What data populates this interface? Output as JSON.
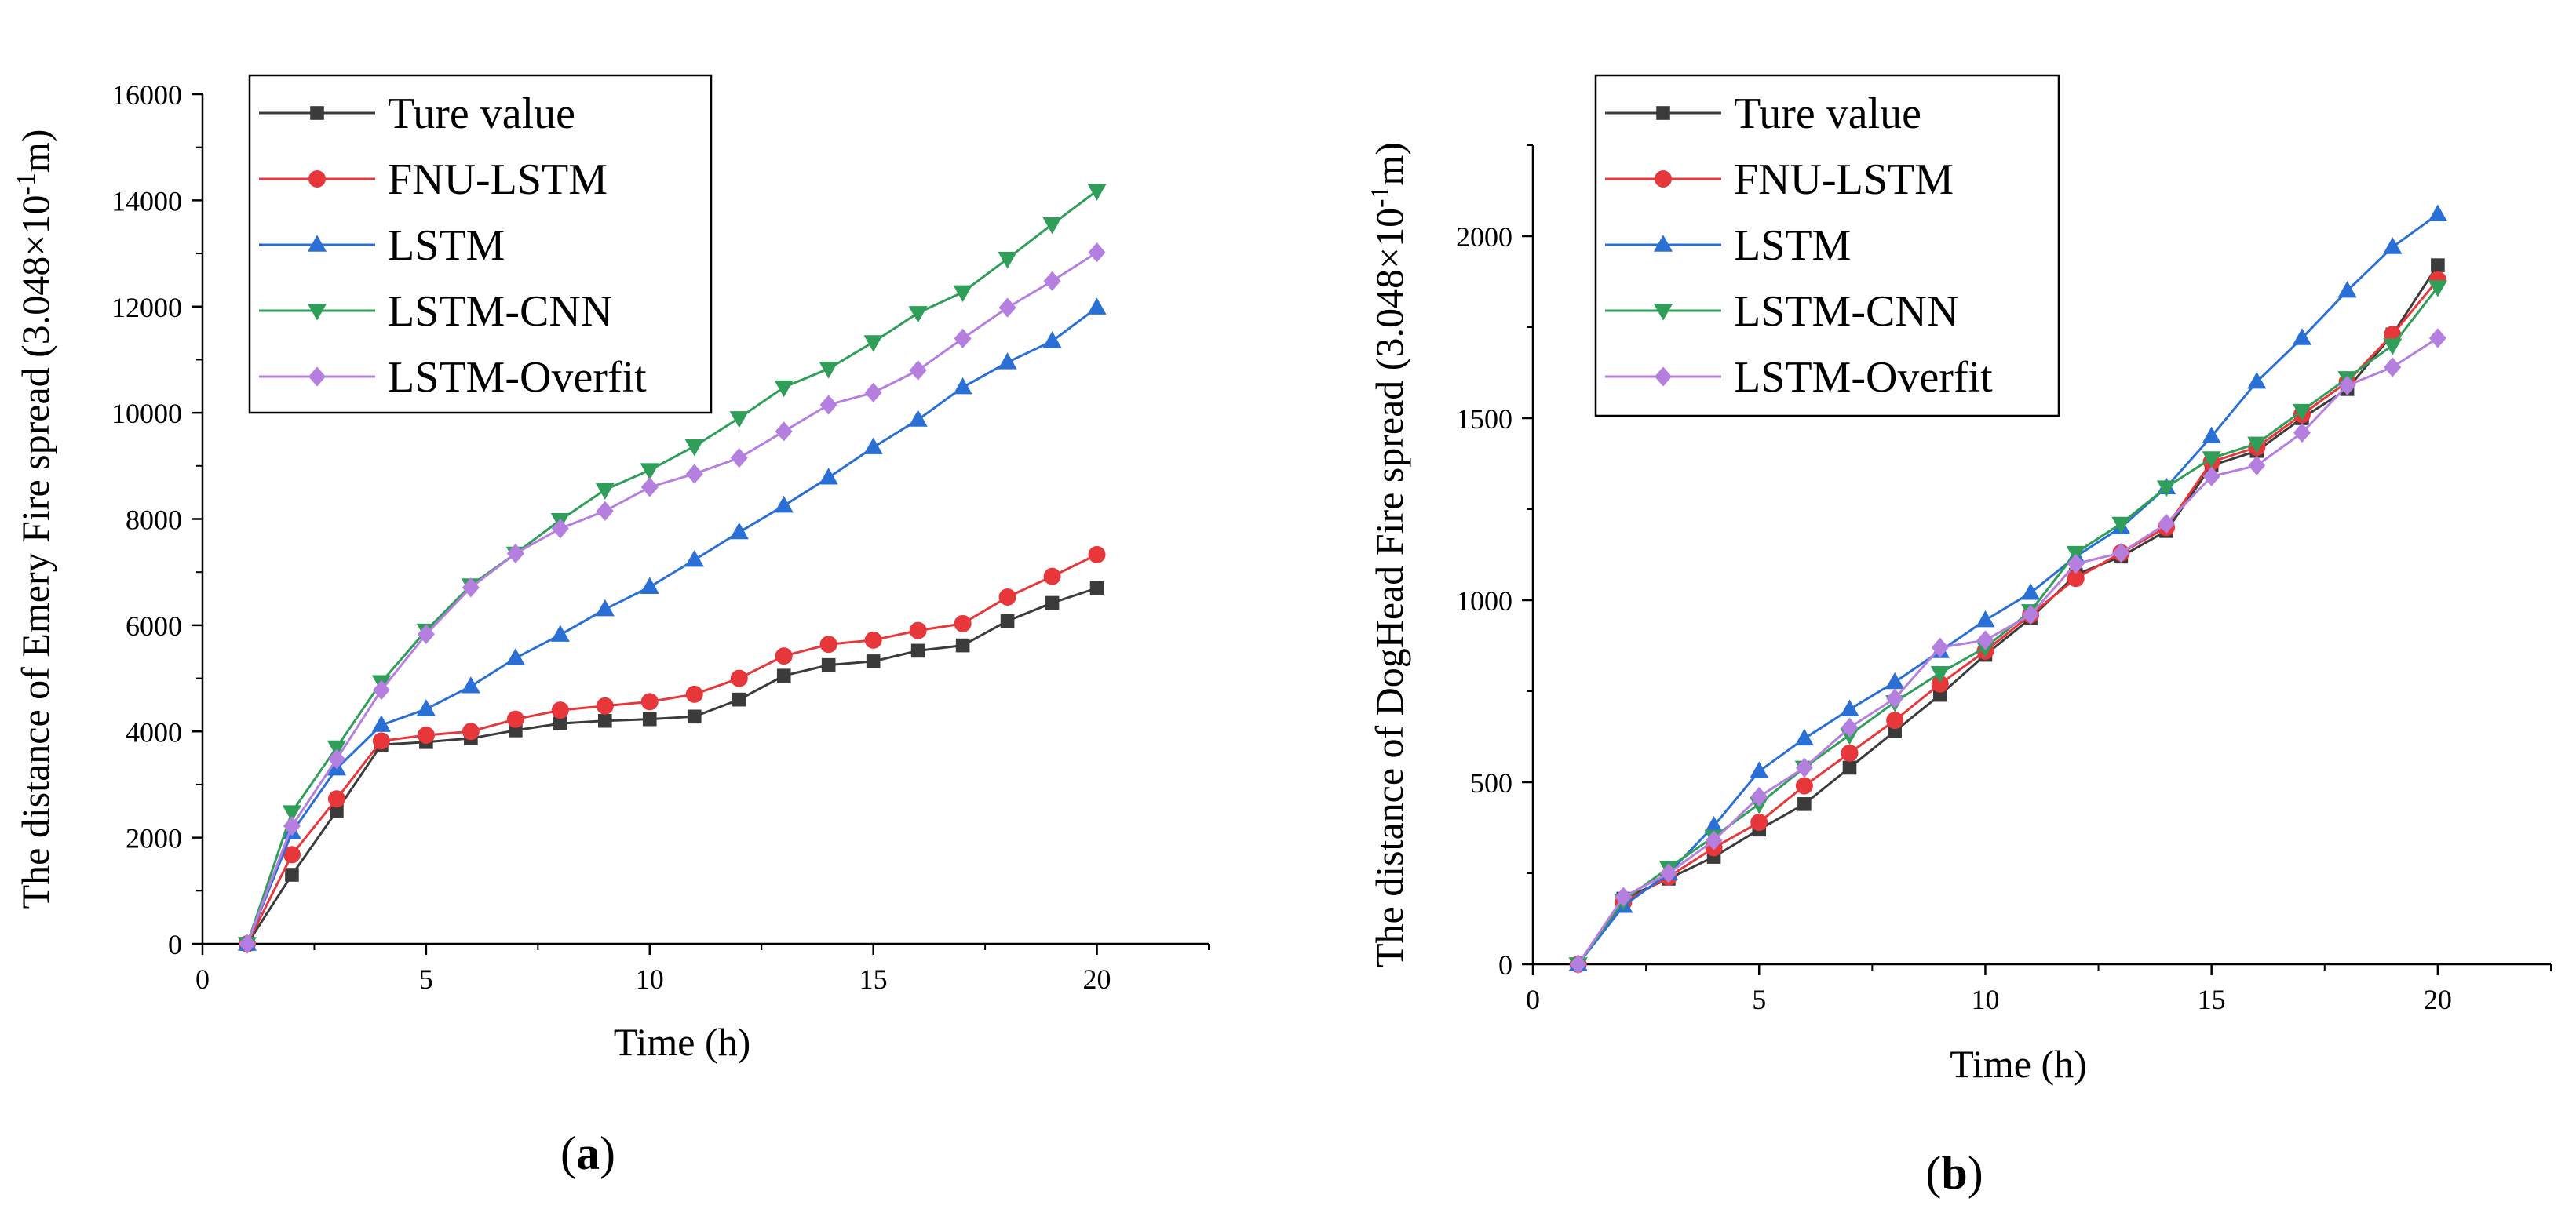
{
  "chart_data": [
    {
      "type": "line",
      "panel": "a",
      "panel_label": "a",
      "title": "",
      "xlabel": "Time (h)",
      "ylabel": "The distance of Emery Fire spread (3.048×10",
      "ylabel_exp": "-1",
      "ylabel_unit": "m)",
      "xlim": [
        0,
        22.5
      ],
      "ylim": [
        0,
        16000
      ],
      "xticks": [
        0,
        5,
        10,
        15,
        20
      ],
      "yticks": [
        0,
        2000,
        4000,
        6000,
        8000,
        10000,
        12000,
        14000,
        16000
      ],
      "grid": false,
      "legend_position": "top-left",
      "x": [
        1,
        2,
        3,
        4,
        5,
        6,
        7,
        8,
        9,
        10,
        11,
        12,
        13,
        14,
        15,
        16,
        17,
        18,
        19,
        20
      ],
      "series": [
        {
          "name": "Ture value",
          "marker": "square",
          "color": "#3b3b3b",
          "values": [
            0,
            1300,
            2500,
            3750,
            3800,
            3870,
            4020,
            4150,
            4200,
            4230,
            4280,
            4600,
            5050,
            5250,
            5320,
            5520,
            5620,
            6080,
            6420,
            6700
          ]
        },
        {
          "name": "FNU-LSTM",
          "marker": "circle",
          "color": "#e8373a",
          "values": [
            0,
            1680,
            2730,
            3820,
            3930,
            4000,
            4230,
            4400,
            4480,
            4560,
            4700,
            5000,
            5420,
            5640,
            5720,
            5900,
            6030,
            6530,
            6920,
            7330
          ]
        },
        {
          "name": "LSTM",
          "marker": "triangle-up",
          "color": "#2a6fd6",
          "values": [
            0,
            2100,
            3300,
            4120,
            4420,
            4850,
            5380,
            5820,
            6300,
            6720,
            7230,
            7750,
            8250,
            8780,
            9350,
            9870,
            10480,
            10950,
            11350,
            11980
          ]
        },
        {
          "name": "LSTM-CNN",
          "marker": "triangle-down",
          "color": "#2f9e58",
          "values": [
            0,
            2480,
            3700,
            4930,
            5900,
            6750,
            7350,
            7980,
            8550,
            8920,
            9370,
            9900,
            10480,
            10830,
            11330,
            11880,
            12270,
            12900,
            13550,
            14180
          ]
        },
        {
          "name": "LSTM-Overfit",
          "marker": "diamond",
          "color": "#b57fe0",
          "values": [
            0,
            2220,
            3480,
            4780,
            5830,
            6710,
            7350,
            7820,
            8150,
            8600,
            8850,
            9150,
            9650,
            10150,
            10380,
            10800,
            11400,
            11980,
            12480,
            13020
          ]
        }
      ]
    },
    {
      "type": "line",
      "panel": "b",
      "panel_label": "b",
      "title": "",
      "xlabel": "Time (h)",
      "ylabel": "The distance of DogHead Fire spread (3.048×10",
      "ylabel_exp": "-1",
      "ylabel_unit": "m)",
      "xlim": [
        0,
        22.5
      ],
      "ylim": [
        0,
        2250
      ],
      "xticks": [
        0,
        5,
        10,
        15,
        20
      ],
      "yticks": [
        0,
        500,
        1000,
        1500,
        2000
      ],
      "grid": false,
      "legend_position": "top-left",
      "x": [
        1,
        2,
        3,
        4,
        5,
        6,
        7,
        8,
        9,
        10,
        11,
        12,
        13,
        14,
        15,
        16,
        17,
        18,
        19,
        20
      ],
      "series": [
        {
          "name": "Ture value",
          "marker": "square",
          "color": "#3b3b3b",
          "values": [
            0,
            180,
            235,
            295,
            370,
            440,
            540,
            640,
            740,
            850,
            950,
            1070,
            1120,
            1190,
            1370,
            1410,
            1500,
            1580,
            1730,
            1920
          ]
        },
        {
          "name": "FNU-LSTM",
          "marker": "circle",
          "color": "#e8373a",
          "values": [
            0,
            170,
            240,
            320,
            390,
            490,
            580,
            670,
            770,
            860,
            960,
            1060,
            1130,
            1200,
            1380,
            1420,
            1510,
            1600,
            1730,
            1880
          ]
        },
        {
          "name": "LSTM",
          "marker": "triangle-up",
          "color": "#2a6fd6",
          "values": [
            0,
            160,
            250,
            380,
            530,
            620,
            700,
            775,
            860,
            945,
            1020,
            1120,
            1200,
            1310,
            1450,
            1600,
            1720,
            1850,
            1970,
            2060
          ]
        },
        {
          "name": "LSTM-CNN",
          "marker": "triangle-down",
          "color": "#2f9e58",
          "values": [
            0,
            175,
            265,
            350,
            440,
            540,
            630,
            720,
            800,
            870,
            970,
            1130,
            1210,
            1310,
            1390,
            1430,
            1520,
            1610,
            1700,
            1860
          ]
        },
        {
          "name": "LSTM-Overfit",
          "marker": "diamond",
          "color": "#b57fe0",
          "values": [
            0,
            185,
            250,
            340,
            460,
            540,
            650,
            730,
            870,
            890,
            960,
            1100,
            1130,
            1210,
            1340,
            1370,
            1460,
            1590,
            1640,
            1720
          ]
        }
      ]
    }
  ]
}
